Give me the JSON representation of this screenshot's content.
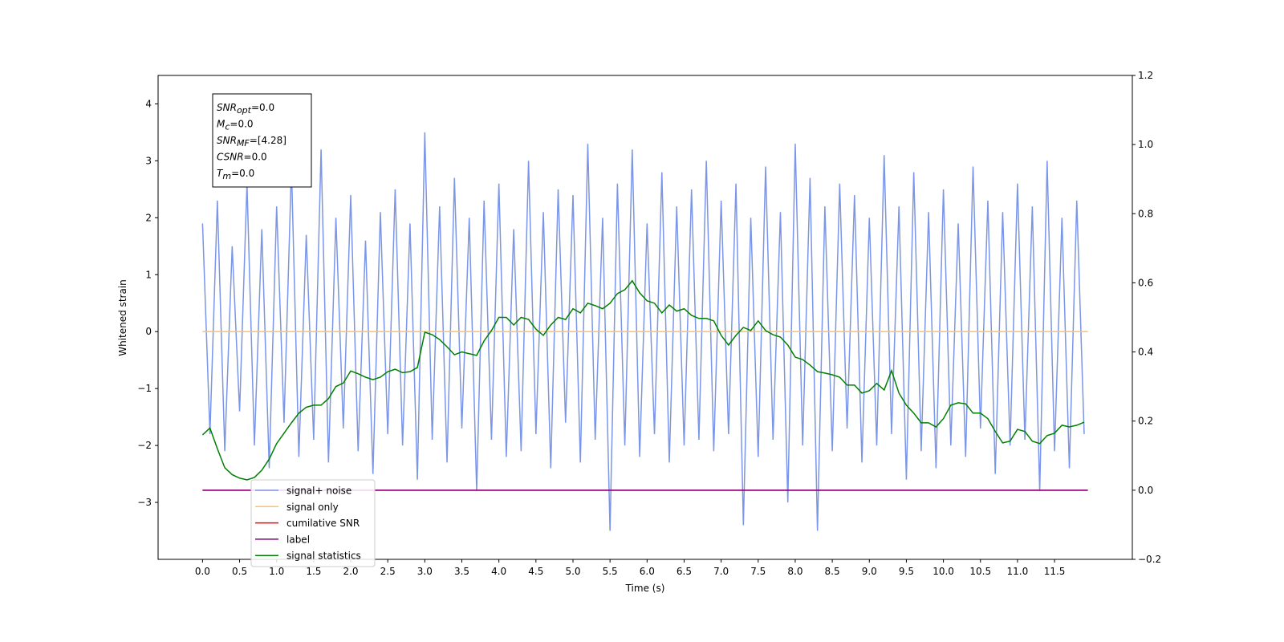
{
  "chart_data": {
    "type": "line",
    "xlabel": "Time (s)",
    "ylabel": "Whitened strain",
    "xlim": [
      -0.6,
      12.55
    ],
    "ylim": [
      -4,
      4.5
    ],
    "y2lim": [
      -0.2,
      1.2
    ],
    "xticks": [
      {
        "value": 0,
        "label": "0.0"
      },
      0.5,
      {
        "value": 1,
        "label": "1.0"
      },
      1.5,
      {
        "value": 2,
        "label": "2.0"
      },
      2.5,
      {
        "value": 3,
        "label": "3.0"
      },
      3.5,
      {
        "value": 4,
        "label": "4.0"
      },
      4.5,
      {
        "value": 5,
        "label": "5.0"
      },
      5.5,
      {
        "value": 6,
        "label": "6.0"
      },
      6.5,
      {
        "value": 7,
        "label": "7.0"
      },
      7.5,
      {
        "value": 8,
        "label": "8.0"
      },
      8.5,
      {
        "value": 9,
        "label": "9.0"
      },
      9.5,
      {
        "value": 10,
        "label": "10.0"
      },
      10.5,
      {
        "value": 11,
        "label": "11.0"
      },
      11.5
    ],
    "yticks": [
      {
        "value": -3,
        "label": "−3"
      },
      {
        "value": -2,
        "label": "−2"
      },
      {
        "value": -1,
        "label": "−1"
      },
      0,
      1,
      2,
      3,
      4
    ],
    "y2ticks": [
      {
        "value": -0.2,
        "label": "−0.2"
      },
      {
        "value": 0,
        "label": "0.0"
      },
      0.2,
      0.4,
      0.6,
      0.8,
      {
        "value": 1,
        "label": "1.0"
      },
      1.2
    ],
    "x": [
      0,
      0.1,
      0.2,
      0.3,
      0.4,
      0.5,
      0.6,
      0.7,
      0.8,
      0.9,
      1,
      1.1,
      1.2,
      1.3,
      1.4,
      1.5,
      1.6,
      1.7,
      1.8,
      1.9,
      2,
      2.1,
      2.2,
      2.3,
      2.4,
      2.5,
      2.6,
      2.7,
      2.8,
      2.9,
      3,
      3.1,
      3.2,
      3.3,
      3.4,
      3.5,
      3.6,
      3.7,
      3.8,
      3.9,
      4,
      4.1,
      4.2,
      4.3,
      4.4,
      4.5,
      4.6,
      4.7,
      4.8,
      4.9,
      5,
      5.1,
      5.2,
      5.3,
      5.4,
      5.5,
      5.6,
      5.7,
      5.8,
      5.9,
      6,
      6.1,
      6.2,
      6.3,
      6.4,
      6.5,
      6.6,
      6.7,
      6.8,
      6.9,
      7,
      7.1,
      7.2,
      7.3,
      7.4,
      7.5,
      7.6,
      7.7,
      7.8,
      7.9,
      8,
      8.1,
      8.2,
      8.3,
      8.4,
      8.5,
      8.6,
      8.7,
      8.8,
      8.9,
      9,
      9.1,
      9.2,
      9.3,
      9.4,
      9.5,
      9.6,
      9.7,
      9.8,
      9.9,
      10,
      10.1,
      10.2,
      10.3,
      10.4,
      10.5,
      10.6,
      10.7,
      10.8,
      10.9,
      11,
      11.1,
      11.2,
      11.3,
      11.4,
      11.5,
      11.6,
      11.7,
      11.8,
      11.9
    ],
    "series": [
      {
        "name": "signal+ noise",
        "color": "#7b95e8",
        "values": [
          1.9,
          -1.8,
          2.3,
          -2.1,
          1.5,
          -1.4,
          2.6,
          -2.0,
          1.8,
          -2.4,
          2.2,
          -1.6,
          2.9,
          -2.2,
          1.7,
          -1.9,
          3.2,
          -2.3,
          2.0,
          -1.7,
          2.4,
          -2.1,
          1.6,
          -2.5,
          2.1,
          -1.8,
          2.5,
          -2.0,
          1.9,
          -2.6,
          3.5,
          -1.9,
          2.2,
          -2.3,
          2.7,
          -1.7,
          2.0,
          -2.8,
          2.3,
          -1.9,
          2.6,
          -2.2,
          1.8,
          -2.1,
          3.0,
          -1.8,
          2.1,
          -2.4,
          2.5,
          -1.6,
          2.4,
          -2.3,
          3.3,
          -1.9,
          2.0,
          -3.5,
          2.6,
          -2.0,
          3.2,
          -2.2,
          1.9,
          -1.8,
          2.8,
          -2.3,
          2.2,
          -2.0,
          2.5,
          -1.9,
          3.0,
          -2.1,
          2.3,
          -1.8,
          2.6,
          -3.4,
          2.0,
          -2.2,
          2.9,
          -1.9,
          2.1,
          -3.0,
          3.3,
          -2.0,
          2.7,
          -3.5,
          2.2,
          -2.1,
          2.6,
          -1.7,
          2.4,
          -2.3,
          2.0,
          -2.0,
          3.1,
          -1.8,
          2.2,
          -2.6,
          2.8,
          -2.1,
          2.1,
          -2.4,
          2.5,
          -2.0,
          1.9,
          -2.2,
          2.9,
          -1.7,
          2.3,
          -2.5,
          2.1,
          -2.0,
          2.6,
          -1.9,
          2.2,
          -2.8,
          3.0,
          -2.1,
          2.0,
          -2.4,
          2.3,
          -1.8
        ]
      },
      {
        "name": "signal only",
        "color": "#ffc266",
        "x": [
          0,
          11.95
        ],
        "values": [
          0,
          0
        ]
      },
      {
        "name": "cumilative SNR",
        "color": "#ff0000",
        "axis": "y2",
        "x": [
          0,
          11.95
        ],
        "values": [
          0,
          0
        ]
      },
      {
        "name": "label",
        "color": "#800080",
        "axis": "y2",
        "x": [
          0,
          11.95
        ],
        "values": [
          0,
          0
        ]
      },
      {
        "name": "signal statistics",
        "color": "#008000",
        "axis": "y2",
        "values": [
          0.16,
          0.18,
          0.12,
          0.065,
          0.045,
          0.035,
          0.03,
          0.037,
          0.058,
          0.09,
          0.135,
          0.165,
          0.195,
          0.223,
          0.24,
          0.246,
          0.246,
          0.265,
          0.3,
          0.31,
          0.345,
          0.337,
          0.327,
          0.32,
          0.327,
          0.343,
          0.35,
          0.34,
          0.343,
          0.355,
          0.457,
          0.45,
          0.436,
          0.415,
          0.392,
          0.4,
          0.395,
          0.39,
          0.432,
          0.462,
          0.5,
          0.5,
          0.478,
          0.5,
          0.494,
          0.466,
          0.448,
          0.478,
          0.5,
          0.494,
          0.525,
          0.513,
          0.541,
          0.534,
          0.525,
          0.541,
          0.569,
          0.58,
          0.606,
          0.571,
          0.548,
          0.541,
          0.513,
          0.536,
          0.518,
          0.525,
          0.506,
          0.497,
          0.497,
          0.49,
          0.448,
          0.42,
          0.448,
          0.471,
          0.462,
          0.49,
          0.462,
          0.45,
          0.443,
          0.42,
          0.385,
          0.378,
          0.362,
          0.343,
          0.339,
          0.334,
          0.327,
          0.304,
          0.304,
          0.281,
          0.288,
          0.309,
          0.29,
          0.346,
          0.281,
          0.246,
          0.223,
          0.195,
          0.195,
          0.183,
          0.207,
          0.246,
          0.253,
          0.25,
          0.223,
          0.223,
          0.207,
          0.17,
          0.137,
          0.142,
          0.176,
          0.17,
          0.142,
          0.135,
          0.158,
          0.165,
          0.188,
          0.183,
          0.188,
          0.197
        ]
      }
    ],
    "textbox": [
      {
        "main": "SNR",
        "sub": "opt",
        "rest": "=0.0"
      },
      {
        "main": "M",
        "sub": "c",
        "rest": "=0.0"
      },
      {
        "main": "SNR",
        "sub": "MF",
        "rest": "=[4.28]"
      },
      {
        "main": "CSNR",
        "rest": "=0.0"
      },
      {
        "main": "T",
        "sub": "m",
        "rest": "=0.0"
      }
    ]
  }
}
